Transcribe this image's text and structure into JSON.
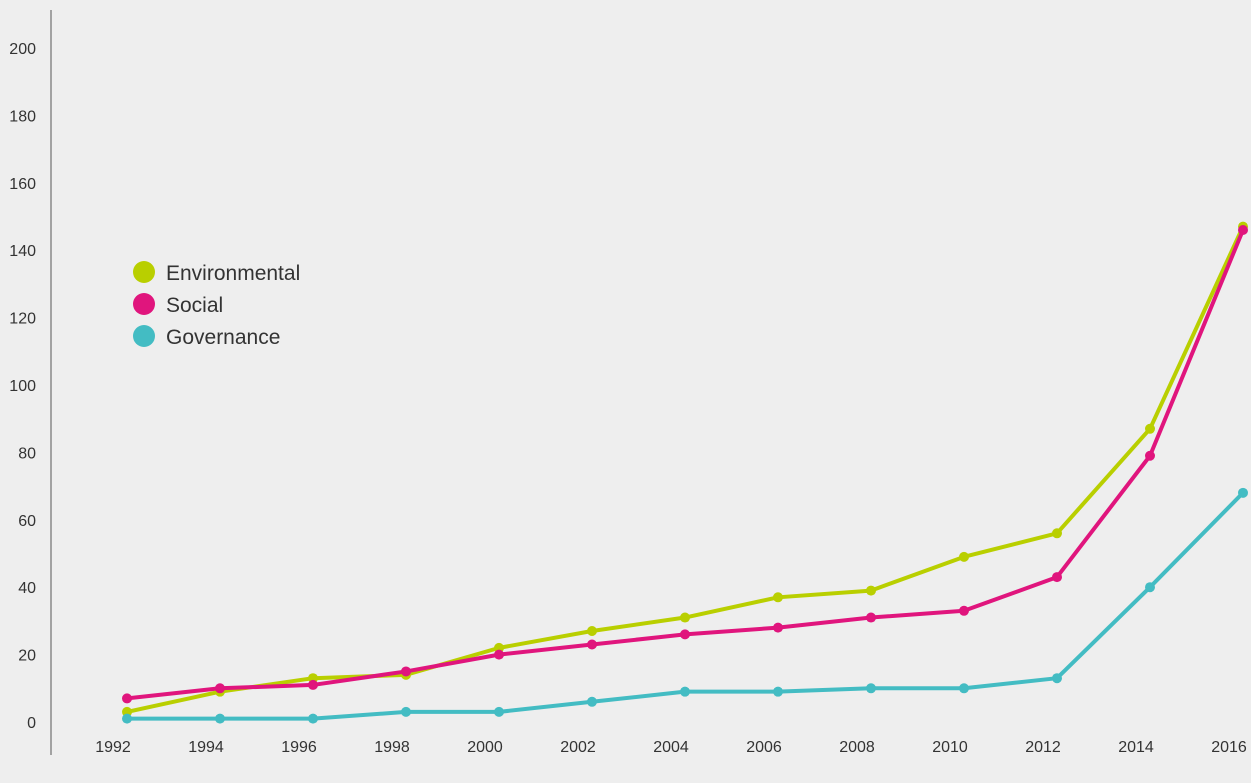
{
  "chart_data": {
    "type": "line",
    "title": "",
    "xlabel": "",
    "ylabel": "",
    "x": [
      "1992",
      "1994",
      "1996",
      "1998",
      "2000",
      "2002",
      "2004",
      "2006",
      "2008",
      "2010",
      "2012",
      "2014",
      "2016"
    ],
    "series": [
      {
        "name": "Environmental",
        "color": "#b9cf00",
        "values": [
          3,
          9,
          13,
          14,
          22,
          27,
          31,
          37,
          39,
          49,
          56,
          87,
          147
        ]
      },
      {
        "name": "Social",
        "color": "#e0157d",
        "values": [
          7,
          10,
          11,
          15,
          20,
          23,
          26,
          28,
          31,
          33,
          43,
          79,
          146
        ]
      },
      {
        "name": "Governance",
        "color": "#43bcc3",
        "values": [
          1,
          1,
          1,
          3,
          3,
          6,
          9,
          9,
          10,
          10,
          13,
          40,
          68
        ]
      }
    ],
    "yticks": [
      "0",
      "20",
      "40",
      "60",
      "80",
      "100",
      "120",
      "140",
      "160",
      "180",
      "200"
    ],
    "ylim": [
      0,
      200
    ],
    "grid": false,
    "legend_position": "middle-left"
  }
}
